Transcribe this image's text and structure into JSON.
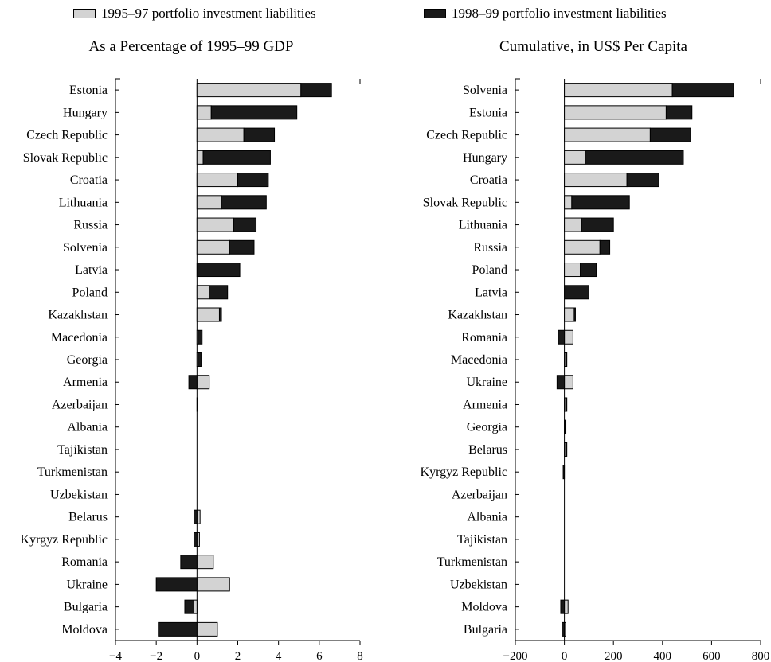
{
  "legend": {
    "series_1995_97": "1995–97 portfolio investment liabilities",
    "series_1998_99": "1998–99 portfolio investment liabilities"
  },
  "colors": {
    "series_1995_97": "#d3d3d3",
    "series_1998_99": "#1a1a1a"
  },
  "chart_data": [
    {
      "type": "bar",
      "orientation": "horizontal",
      "stacked": true,
      "title": "As a Percentage of 1995–99 GDP",
      "xlim": [
        -4,
        8
      ],
      "xticks": [
        -4,
        -2,
        0,
        2,
        4,
        6,
        8
      ],
      "categories": [
        "Estonia",
        "Hungary",
        "Czech Republic",
        "Slovak Republic",
        "Croatia",
        "Lithuania",
        "Russia",
        "Solvenia",
        "Latvia",
        "Poland",
        "Kazakhstan",
        "Macedonia",
        "Georgia",
        "Armenia",
        "Azerbaijan",
        "Albania",
        "Tajikistan",
        "Turkmenistan",
        "Uzbekistan",
        "Belarus",
        "Kyrgyz Republic",
        "Romania",
        "Ukraine",
        "Bulgaria",
        "Moldova"
      ],
      "series": [
        {
          "name": "1995–97 portfolio investment liabilities",
          "values": [
            5.1,
            0.7,
            2.3,
            0.3,
            2.0,
            1.2,
            1.8,
            1.6,
            0.0,
            0.6,
            1.1,
            0.05,
            0.05,
            0.6,
            0.03,
            0.0,
            0.0,
            0.0,
            0.0,
            0.15,
            0.12,
            0.8,
            1.6,
            -0.15,
            1.0
          ]
        },
        {
          "name": "1998–99 portfolio investment liabilities",
          "values": [
            1.5,
            4.2,
            1.5,
            3.3,
            1.5,
            2.2,
            1.1,
            1.2,
            2.1,
            0.9,
            0.1,
            0.2,
            0.15,
            -0.4,
            0.0,
            0.0,
            0.0,
            0.0,
            0.0,
            -0.15,
            -0.15,
            -0.8,
            -2.0,
            -0.45,
            -1.9
          ]
        }
      ]
    },
    {
      "type": "bar",
      "orientation": "horizontal",
      "stacked": true,
      "title": "Cumulative, in US$ Per Capita",
      "xlim": [
        -200,
        800
      ],
      "xticks": [
        -200,
        0,
        200,
        400,
        600,
        800
      ],
      "categories": [
        "Solvenia",
        "Estonia",
        "Czech Republic",
        "Hungary",
        "Croatia",
        "Slovak Republic",
        "Lithuania",
        "Russia",
        "Poland",
        "Latvia",
        "Kazakhstan",
        "Romania",
        "Macedonia",
        "Ukraine",
        "Armenia",
        "Georgia",
        "Belarus",
        "Kyrgyz Republic",
        "Azerbaijan",
        "Albania",
        "Tajikistan",
        "Turkmenistan",
        "Uzbekistan",
        "Moldova",
        "Bulgaria"
      ],
      "series": [
        {
          "name": "1995–97 portfolio investment liabilities",
          "values": [
            440,
            415,
            350,
            85,
            255,
            30,
            70,
            145,
            65,
            0,
            40,
            35,
            5,
            35,
            5,
            3,
            5,
            0,
            0,
            0,
            0,
            0,
            0,
            15,
            5
          ]
        },
        {
          "name": "1998–99 portfolio investment liabilities",
          "values": [
            250,
            105,
            165,
            400,
            130,
            235,
            130,
            40,
            65,
            100,
            5,
            -25,
            5,
            -30,
            5,
            3,
            5,
            -5,
            0,
            0,
            0,
            0,
            0,
            -15,
            -10
          ]
        }
      ]
    }
  ]
}
